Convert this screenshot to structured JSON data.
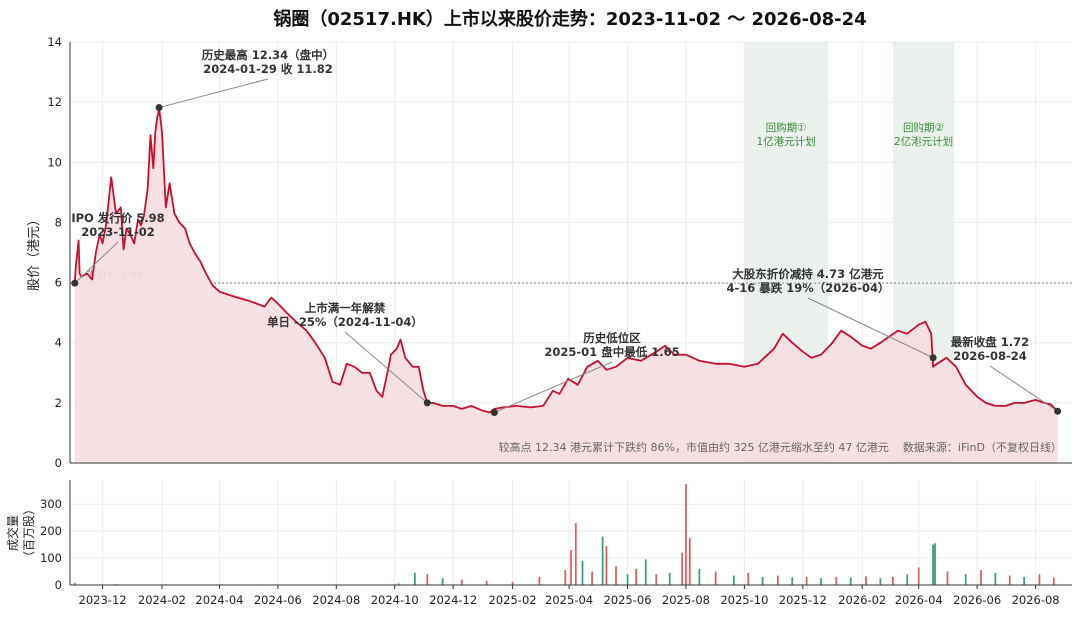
{
  "chart_data": [
    {
      "type": "line",
      "title": "锅圈（02517.HK）上市以来股价走势：2023-11-02 ～ 2026-08-24",
      "ylabel": "股价（港元）",
      "ylim": [
        0,
        14
      ],
      "yticks": [
        0,
        2,
        4,
        6,
        8,
        10,
        12,
        14
      ],
      "xticks": [
        "2023-12",
        "2024-02",
        "2024-04",
        "2024-06",
        "2024-08",
        "2024-10",
        "2024-12",
        "2025-02",
        "2025-04",
        "2025-06",
        "2025-08",
        "2025-10",
        "2025-12",
        "2026-02",
        "2026-04",
        "2026-06",
        "2026-08"
      ],
      "grid": true,
      "colors": {
        "line": "#c8102e",
        "fill": "#f6dde1",
        "shade": "#e6eee9",
        "shade_text": "#3a8a3a",
        "ref_line": "#888888",
        "marker": "#333333"
      },
      "x_range": [
        "2023-10-28",
        "2026-09-08"
      ],
      "series": [
        {
          "x": [
            "2023-11-02",
            "2023-11-03",
            "2023-11-06",
            "2023-11-07",
            "2023-11-09",
            "2023-11-15",
            "2023-11-20",
            "2023-11-24",
            "2023-11-28",
            "2023-12-01",
            "2023-12-05",
            "2023-12-10",
            "2023-12-15",
            "2023-12-20",
            "2023-12-23",
            "2023-12-26",
            "2023-12-30",
            "2024-01-03",
            "2024-01-07",
            "2024-01-10",
            "2024-01-13",
            "2024-01-17",
            "2024-01-20",
            "2024-01-23",
            "2024-01-25",
            "2024-01-27",
            "2024-01-28",
            "2024-01-29",
            "2024-02-01",
            "2024-02-05",
            "2024-02-09",
            "2024-02-14",
            "2024-02-19",
            "2024-02-25",
            "2024-03-01",
            "2024-03-06",
            "2024-03-12",
            "2024-03-18",
            "2024-03-25",
            "2024-04-01",
            "2024-04-10",
            "2024-04-20",
            "2024-05-01",
            "2024-05-10",
            "2024-05-18",
            "2024-05-25",
            "2024-06-01",
            "2024-06-10",
            "2024-06-20",
            "2024-07-01",
            "2024-07-10",
            "2024-07-20",
            "2024-07-28",
            "2024-08-05",
            "2024-08-12",
            "2024-08-20",
            "2024-08-28",
            "2024-09-05",
            "2024-09-12",
            "2024-09-18",
            "2024-09-24",
            "2024-09-27",
            "2024-10-03",
            "2024-10-07",
            "2024-10-12",
            "2024-10-20",
            "2024-10-26",
            "2024-10-31",
            "2024-11-04",
            "2024-11-10",
            "2024-11-20",
            "2024-12-01",
            "2024-12-10",
            "2024-12-20",
            "2024-12-31",
            "2025-01-08",
            "2025-01-13",
            "2025-01-22",
            "2025-02-05",
            "2025-02-20",
            "2025-03-05",
            "2025-03-15",
            "2025-03-22",
            "2025-03-31",
            "2025-04-10",
            "2025-04-20",
            "2025-05-01",
            "2025-05-10",
            "2025-05-20",
            "2025-06-01",
            "2025-06-15",
            "2025-07-01",
            "2025-07-10",
            "2025-07-20",
            "2025-08-01",
            "2025-08-15",
            "2025-09-01",
            "2025-09-15",
            "2025-10-01",
            "2025-10-15",
            "2025-11-01",
            "2025-11-10",
            "2025-11-20",
            "2025-12-01",
            "2025-12-10",
            "2025-12-20",
            "2026-01-01",
            "2026-01-10",
            "2026-01-20",
            "2026-02-01",
            "2026-02-10",
            "2026-02-20",
            "2026-03-01",
            "2026-03-10",
            "2026-03-20",
            "2026-04-01",
            "2026-04-08",
            "2026-04-14",
            "2026-04-16",
            "2026-04-20",
            "2026-04-30",
            "2026-05-10",
            "2026-05-20",
            "2026-06-01",
            "2026-06-10",
            "2026-06-20",
            "2026-07-01",
            "2026-07-10",
            "2026-07-20",
            "2026-08-01",
            "2026-08-10",
            "2026-08-17",
            "2026-08-24"
          ],
          "values": [
            5.98,
            6.5,
            7.4,
            6.3,
            6.2,
            6.3,
            6.1,
            7.0,
            7.6,
            7.3,
            8.0,
            9.5,
            8.3,
            8.5,
            7.1,
            7.8,
            7.6,
            7.3,
            8.1,
            7.9,
            8.2,
            9.1,
            10.9,
            9.8,
            11.0,
            11.5,
            11.6,
            11.82,
            11.0,
            8.5,
            9.3,
            8.3,
            8.0,
            7.8,
            7.3,
            7.0,
            6.7,
            6.3,
            5.9,
            5.7,
            5.6,
            5.5,
            5.4,
            5.3,
            5.2,
            5.5,
            5.3,
            5.0,
            4.7,
            4.4,
            4.0,
            3.5,
            2.7,
            2.6,
            3.3,
            3.2,
            3.0,
            3.0,
            2.4,
            2.2,
            3.1,
            3.6,
            3.8,
            4.1,
            3.5,
            3.2,
            3.2,
            2.4,
            2.0,
            2.0,
            1.9,
            1.9,
            1.8,
            1.9,
            1.75,
            1.68,
            1.8,
            1.85,
            1.9,
            1.85,
            1.9,
            2.4,
            2.3,
            2.8,
            2.6,
            3.2,
            3.4,
            3.1,
            3.2,
            3.5,
            3.4,
            3.7,
            3.9,
            3.6,
            3.6,
            3.4,
            3.3,
            3.3,
            3.2,
            3.3,
            3.8,
            4.3,
            4.0,
            3.7,
            3.5,
            3.6,
            4.0,
            4.4,
            4.2,
            3.9,
            3.8,
            4.0,
            4.2,
            4.4,
            4.3,
            4.6,
            4.7,
            4.3,
            3.2,
            3.3,
            3.5,
            3.2,
            2.6,
            2.2,
            2.0,
            1.9,
            1.9,
            2.0,
            2.0,
            2.1,
            2.0,
            1.95,
            1.72
          ]
        }
      ],
      "annotations": [
        {
          "x": "2023-11-02",
          "y": 5.98,
          "lines": [
            "IPO 发行价 5.98",
            "2023-11-02"
          ]
        },
        {
          "x": "2024-01-29",
          "y": 11.82,
          "lines": [
            "历史最高 12.34（盘中）",
            "2024-01-29 收 11.82"
          ]
        },
        {
          "x": "2024-11-04",
          "y": 2.0,
          "lines": [
            "上市满一年解禁",
            "单日 -25%（2024-11-04）"
          ]
        },
        {
          "x": "2025-01-13",
          "y": 1.68,
          "lines": [
            "历史低位区",
            "2025-01 盘中最低 1.65"
          ]
        },
        {
          "x": "2026-04-16",
          "y": 3.5,
          "lines": [
            "大股东折价减持 4.73 亿港元",
            "4-16 暴跌 19%（2026-04）"
          ]
        },
        {
          "x": "2026-08-24",
          "y": 1.72,
          "lines": [
            "最新收盘 1.72",
            "2026-08-24"
          ]
        }
      ],
      "reference_line": {
        "y": 5.98,
        "label": "发行价 5.98"
      },
      "shaded_periods": [
        {
          "start": "2025-10-01",
          "end": "2025-12-27",
          "label": [
            "回购期①",
            "1亿港元计划"
          ]
        },
        {
          "start": "2026-03-05",
          "end": "2026-05-08",
          "label": [
            "回购期②",
            "2亿港元计划"
          ]
        }
      ],
      "footnote": "较高点 12.34 港元累计下跌约 86%，市值由约 325 亿港元缩水至约 47 亿港元    数据来源：iFinD（不复权日线）"
    },
    {
      "type": "bar",
      "ylabel": "成交量（百万股）",
      "ylim": [
        0,
        390
      ],
      "yticks": [
        0,
        100,
        200,
        300
      ],
      "colors": {
        "up": "#e06060",
        "down": "#3aa07a"
      },
      "x": [
        "2023-11-02",
        "2023-12-15",
        "2024-02-05",
        "2024-04-01",
        "2024-05-15",
        "2024-10-05",
        "2024-10-22",
        "2024-11-04",
        "2024-11-20",
        "2024-12-10",
        "2025-01-05",
        "2025-02-01",
        "2025-03-01",
        "2025-03-28",
        "2025-04-03",
        "2025-04-08",
        "2025-04-15",
        "2025-04-25",
        "2025-05-06",
        "2025-05-10",
        "2025-05-20",
        "2025-06-01",
        "2025-06-10",
        "2025-06-20",
        "2025-07-01",
        "2025-07-15",
        "2025-07-28",
        "2025-08-01",
        "2025-08-05",
        "2025-08-15",
        "2025-09-01",
        "2025-09-20",
        "2025-10-05",
        "2025-10-20",
        "2025-11-05",
        "2025-11-20",
        "2025-12-05",
        "2025-12-20",
        "2026-01-05",
        "2026-01-20",
        "2026-02-05",
        "2026-02-20",
        "2026-03-05",
        "2026-03-20",
        "2026-04-01",
        "2026-04-16",
        "2026-04-18",
        "2026-05-01",
        "2026-05-20",
        "2026-06-05",
        "2026-06-20",
        "2026-07-05",
        "2026-07-20",
        "2026-08-05",
        "2026-08-20"
      ],
      "values": [
        8,
        3,
        3,
        2,
        2,
        6,
        45,
        40,
        25,
        20,
        15,
        12,
        30,
        55,
        130,
        230,
        90,
        50,
        180,
        145,
        70,
        40,
        60,
        95,
        40,
        45,
        120,
        375,
        175,
        60,
        50,
        35,
        45,
        30,
        35,
        28,
        30,
        25,
        30,
        28,
        32,
        25,
        30,
        40,
        65,
        150,
        155,
        50,
        40,
        55,
        45,
        35,
        30,
        40,
        28
      ],
      "direction": [
        "up",
        "up",
        "up",
        "up",
        "up",
        "up",
        "down",
        "up",
        "down",
        "up",
        "up",
        "up",
        "up",
        "up",
        "up",
        "up",
        "down",
        "up",
        "down",
        "up",
        "up",
        "down",
        "up",
        "down",
        "up",
        "down",
        "up",
        "up",
        "up",
        "down",
        "up",
        "down",
        "up",
        "down",
        "up",
        "down",
        "up",
        "down",
        "up",
        "down",
        "up",
        "down",
        "up",
        "down",
        "up",
        "down",
        "down",
        "up",
        "down",
        "up",
        "down",
        "up",
        "down",
        "up",
        "up"
      ]
    }
  ]
}
